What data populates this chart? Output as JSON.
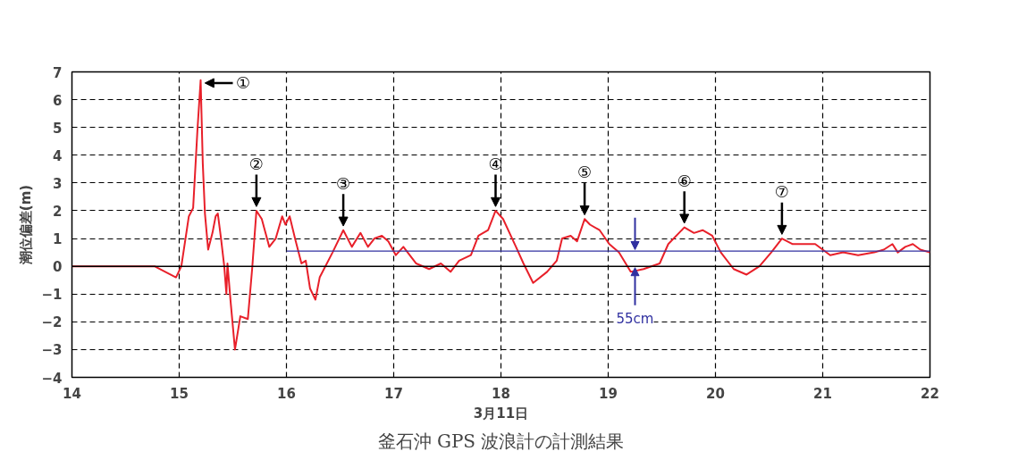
{
  "chart_data": {
    "type": "line",
    "title": "釜石沖 GPS 波浪計の計測結果",
    "xlabel": "3月11日",
    "ylabel": "潮位偏差(m)",
    "xlim": [
      14,
      22
    ],
    "ylim": [
      -4,
      7
    ],
    "xticks": [
      14,
      15,
      16,
      17,
      18,
      19,
      20,
      21,
      22
    ],
    "yticks": [
      -4,
      -3,
      -2,
      -1,
      0,
      1,
      2,
      3,
      4,
      5,
      6,
      7
    ],
    "grid": true,
    "line_style": "solid",
    "series": [
      {
        "color": "#e8202a",
        "x": [
          14.0,
          14.77,
          14.97,
          15.02,
          15.09,
          15.13,
          15.17,
          15.2,
          15.22,
          15.24,
          15.27,
          15.31,
          15.34,
          15.36,
          15.39,
          15.42,
          15.44,
          15.45,
          15.48,
          15.52,
          15.57,
          15.64,
          15.68,
          15.72,
          15.77,
          15.84,
          15.9,
          15.96,
          15.99,
          16.03,
          16.08,
          16.14,
          16.18,
          16.22,
          16.27,
          16.31,
          16.43,
          16.53,
          16.61,
          16.69,
          16.76,
          16.82,
          16.89,
          16.95,
          17.02,
          17.09,
          17.21,
          17.33,
          17.44,
          17.53,
          17.61,
          17.72,
          17.79,
          17.88,
          17.95,
          18.02,
          18.14,
          18.21,
          18.3,
          18.43,
          18.52,
          18.57,
          18.65,
          18.71,
          18.78,
          18.83,
          18.92,
          19.01,
          19.1,
          19.21,
          19.33,
          19.48,
          19.56,
          19.71,
          19.8,
          19.88,
          19.97,
          20.05,
          20.17,
          20.29,
          20.41,
          20.52,
          20.62,
          20.72,
          20.84,
          20.93,
          21.0,
          21.07,
          21.19,
          21.33,
          21.48,
          21.57,
          21.65,
          21.7,
          21.77,
          21.84,
          21.91,
          22.0
        ],
        "values": [
          0,
          0,
          -0.4,
          0,
          1.8,
          2.1,
          4.9,
          6.7,
          3.7,
          1.9,
          0.6,
          1.2,
          1.8,
          1.9,
          1.0,
          0,
          -1.0,
          0.1,
          -1.3,
          -3.0,
          -1.8,
          -1.9,
          -0.1,
          2.0,
          1.7,
          0.7,
          1.0,
          1.8,
          1.5,
          1.8,
          1.0,
          0.1,
          0.2,
          -0.8,
          -1.2,
          -0.4,
          0.5,
          1.3,
          0.7,
          1.2,
          0.7,
          1.0,
          1.1,
          0.9,
          0.4,
          0.7,
          0.1,
          -0.1,
          0.1,
          -0.2,
          0.2,
          0.4,
          1.1,
          1.3,
          2.0,
          1.7,
          0.7,
          0.1,
          -0.6,
          -0.2,
          0.2,
          1.0,
          1.1,
          0.9,
          1.7,
          1.5,
          1.3,
          0.8,
          0.5,
          -0.2,
          -0.1,
          0.1,
          0.8,
          1.4,
          1.2,
          1.3,
          1.1,
          0.5,
          -0.1,
          -0.3,
          0,
          0.5,
          1.0,
          0.8,
          0.8,
          0.8,
          0.6,
          0.4,
          0.5,
          0.4,
          0.5,
          0.6,
          0.8,
          0.5,
          0.7,
          0.8,
          0.6,
          0.5
        ]
      },
      {
        "color": "#3030a0",
        "x": [
          16,
          22
        ],
        "values": [
          0.55,
          0.55
        ]
      }
    ],
    "ref_lines": [
      {
        "axis": "y",
        "value": 0,
        "color": "#000000"
      }
    ],
    "annotations": [
      {
        "text": "①",
        "x": 15.2,
        "y": 6.7
      },
      {
        "text": "②",
        "x": 15.72,
        "y": 2.0
      },
      {
        "text": "③",
        "x": 16.53,
        "y": 1.3
      },
      {
        "text": "④",
        "x": 17.95,
        "y": 2.0
      },
      {
        "text": "⑤",
        "x": 18.78,
        "y": 1.7
      },
      {
        "text": "⑥",
        "x": 19.71,
        "y": 1.4
      },
      {
        "text": "⑦",
        "x": 20.62,
        "y": 1.0
      },
      {
        "text": "55cm",
        "x": 19.25,
        "y": -1.9
      }
    ]
  }
}
